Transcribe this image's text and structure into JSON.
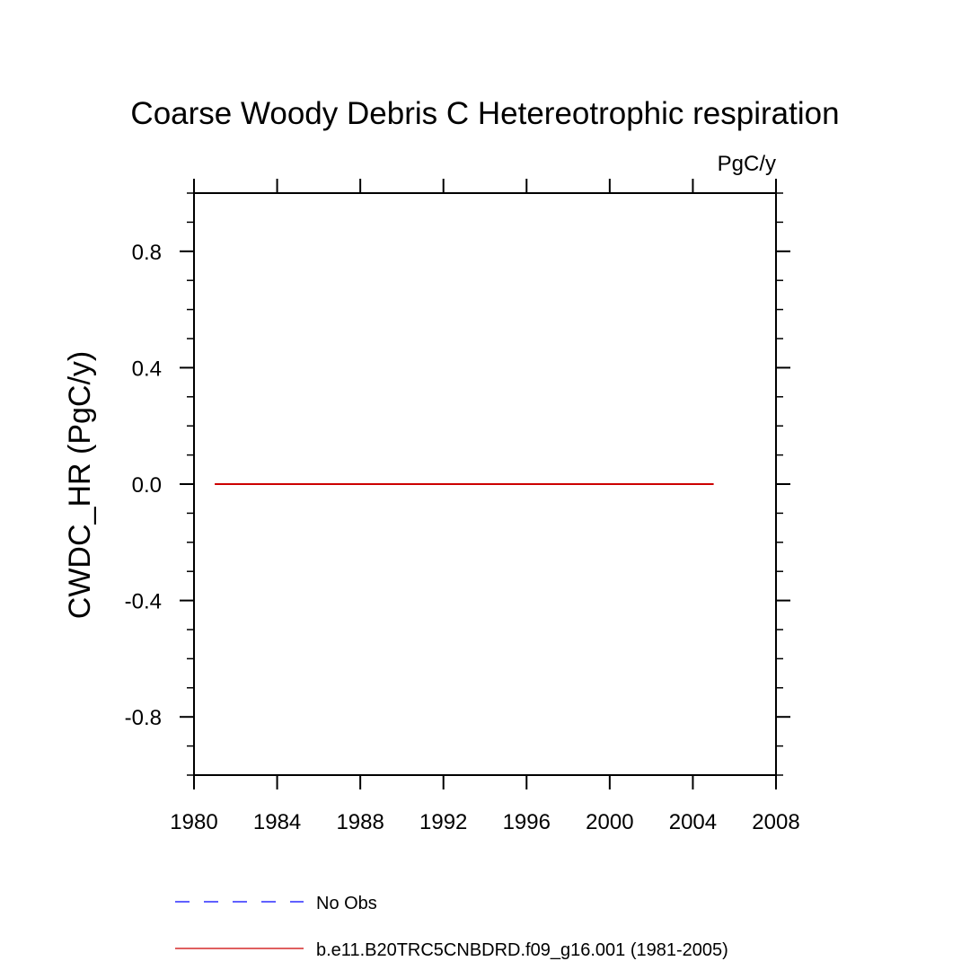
{
  "chart_data": {
    "type": "line",
    "title": "Coarse Woody Debris C Hetereotrophic respiration",
    "units_label": "PgC/y",
    "ylabel": "CWDC_HR  (PgC/y)",
    "xlabel": "",
    "xlim": [
      1980,
      2008
    ],
    "ylim": [
      -1.0,
      1.0
    ],
    "x_ticks": [
      1980,
      1984,
      1988,
      1992,
      1996,
      2000,
      2004,
      2008
    ],
    "x_tick_labels": [
      "1980",
      "1984",
      "1988",
      "1992",
      "1996",
      "2000",
      "2004",
      "2008"
    ],
    "y_ticks": [
      -0.8,
      -0.4,
      0.0,
      0.4,
      0.8
    ],
    "y_tick_labels": [
      "-0.8",
      "-0.4",
      "0.0",
      "0.4",
      "0.8"
    ],
    "grid": false,
    "legend_placement": "bottom",
    "series": [
      {
        "name": "No Obs",
        "color": "#0000ff",
        "style": "dashed",
        "x": [],
        "y": []
      },
      {
        "name": "b.e11.B20TRC5CNBDRD.f09_g16.001 (1981-2005)",
        "color": "#cc0000",
        "style": "solid",
        "x": [
          1981,
          1982,
          1983,
          1984,
          1985,
          1986,
          1987,
          1988,
          1989,
          1990,
          1991,
          1992,
          1993,
          1994,
          1995,
          1996,
          1997,
          1998,
          1999,
          2000,
          2001,
          2002,
          2003,
          2004,
          2005
        ],
        "y": [
          0,
          0,
          0,
          0,
          0,
          0,
          0,
          0,
          0,
          0,
          0,
          0,
          0,
          0,
          0,
          0,
          0,
          0,
          0,
          0,
          0,
          0,
          0,
          0,
          0
        ]
      }
    ]
  }
}
